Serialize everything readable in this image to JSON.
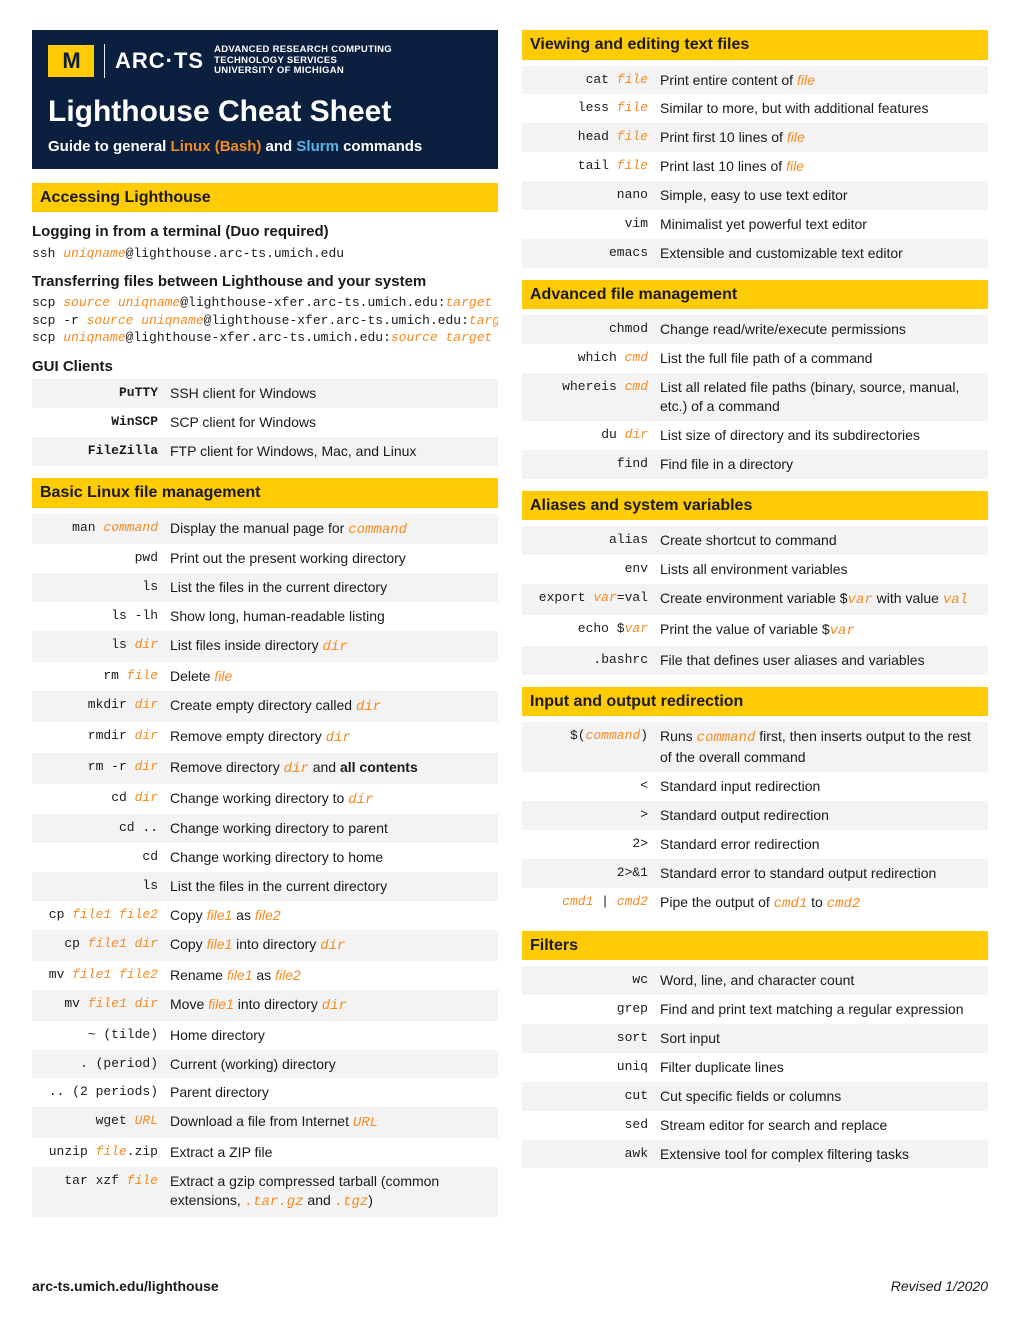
{
  "banner": {
    "logo_letter": "M",
    "arcts": "ARC·TS",
    "sub1": "ADVANCED RESEARCH COMPUTING",
    "sub2": "TECHNOLOGY SERVICES",
    "sub3": "UNIVERSITY OF MICHIGAN",
    "title": "Lighthouse Cheat Sheet",
    "subtitle_prefix": "Guide to general ",
    "subtitle_orange": "Linux (Bash)",
    "subtitle_mid": " and ",
    "subtitle_blue": "Slurm",
    "subtitle_suffix": " commands"
  },
  "colors": {
    "banner_bg": "#0b1f3f",
    "gold": "#ffcb05",
    "orange": "#f58a1f",
    "blue": "#5bb3e8",
    "row_alt": "#f3f3f3"
  },
  "left": {
    "sec1": {
      "title": "Accessing Lighthouse",
      "login_hdr": "Logging in from a terminal (Duo required)",
      "login_cmd_pre": "ssh ",
      "login_cmd_var": "uniqname",
      "login_cmd_post": "@lighthouse.arc-ts.umich.edu",
      "xfer_hdr": "Transferring files between Lighthouse and your system",
      "xfer1": {
        "a": "scp ",
        "b": "source uniqname",
        "c": "@lighthouse-xfer.arc-ts.umich.edu:",
        "d": "target"
      },
      "xfer2": {
        "a": "scp -r ",
        "b": "source uniqname",
        "c": "@lighthouse-xfer.arc-ts.umich.edu:",
        "d": "target"
      },
      "xfer3": {
        "a": "scp ",
        "b": "uniqname",
        "c": "@lighthouse-xfer.arc-ts.umich.edu:",
        "d": "source target"
      },
      "gui_hdr": "GUI Clients",
      "gui_rows": [
        {
          "k": "PuTTY",
          "d": "SSH client for Windows"
        },
        {
          "k": "WinSCP",
          "d": "SCP client for Windows"
        },
        {
          "k": "FileZilla",
          "d": "FTP client for Windows, Mac, and Linux"
        }
      ]
    },
    "sec2": {
      "title": "Basic Linux file management",
      "rows": [
        {
          "k": "man <i>command</i>",
          "d": "Display the manual page for <i>command</i>"
        },
        {
          "k": "pwd",
          "d": "Print out the present working directory"
        },
        {
          "k": "ls",
          "d": "List the files in the current directory"
        },
        {
          "k": "ls -lh",
          "d": "Show long, human-readable listing"
        },
        {
          "k": "ls <i>dir</i>",
          "d": "List files inside directory <i>dir</i>"
        },
        {
          "k": "rm <i>file</i>",
          "d": "Delete <fi>file</fi>"
        },
        {
          "k": "mkdir <i>dir</i>",
          "d": "Create empty directory called <i>dir</i>"
        },
        {
          "k": "rmdir <i>dir</i>",
          "d": "Remove empty directory <i>dir</i>"
        },
        {
          "k": "rm -r <i>dir</i>",
          "d": "Remove directory <i>dir</i> and <b>all contents</b>"
        },
        {
          "k": "cd <i>dir</i>",
          "d": "Change working directory to <i>dir</i>"
        },
        {
          "k": "cd ..",
          "d": "Change working directory to parent"
        },
        {
          "k": "cd",
          "d": "Change working directory to home"
        },
        {
          "k": "ls",
          "d": "List the files in the current directory"
        },
        {
          "k": "cp <i>file1 file2</i>",
          "d": "Copy <fi>file1</fi> as <fi>file2</fi>"
        },
        {
          "k": "cp <i>file1 dir</i>",
          "d": "Copy <fi>file1</fi> into directory <i>dir</i>"
        },
        {
          "k": "mv <i>file1 file2</i>",
          "d": "Rename <fi>file1</fi> as <fi>file2</fi>"
        },
        {
          "k": "mv <i>file1 dir</i>",
          "d": "Move <fi>file1</fi> into directory <i>dir</i>"
        },
        {
          "k": "~ (tilde)",
          "d": "Home directory"
        },
        {
          "k": ". (period)",
          "d": "Current (working) directory"
        },
        {
          "k": ".. (2 periods)",
          "d": "Parent directory"
        },
        {
          "k": "wget <i>URL</i>",
          "d": "Download a file from Internet <i>URL</i>"
        },
        {
          "k": "unzip <i>file</i>.zip",
          "d": "Extract a ZIP file"
        },
        {
          "k": "tar xzf <i>file</i>",
          "d": "Extract a gzip compressed tarball (common extensions, <m>.tar.gz</m> and <m>.tgz</m>)"
        }
      ]
    }
  },
  "right": {
    "sec3": {
      "title": "Viewing and editing text files",
      "rows": [
        {
          "k": "cat <i>file</i>",
          "d": "Print entire content of <fi>file</fi>"
        },
        {
          "k": "less <i>file</i>",
          "d": "Similar to more, but with additional features"
        },
        {
          "k": "head <i>file</i>",
          "d": "Print first 10 lines of <fi>file</fi>"
        },
        {
          "k": "tail <i>file</i>",
          "d": "Print last 10 lines of <fi>file</fi>"
        },
        {
          "k": "nano",
          "d": "Simple, easy to use text editor"
        },
        {
          "k": "vim",
          "d": "Minimalist yet powerful text editor"
        },
        {
          "k": "emacs",
          "d": "Extensible and customizable text editor"
        }
      ]
    },
    "sec4": {
      "title": "Advanced file management",
      "rows": [
        {
          "k": "chmod",
          "d": "Change read/write/execute permissions"
        },
        {
          "k": "which <i>cmd</i>",
          "d": "List the full file path of a command"
        },
        {
          "k": "whereis <i>cmd</i>",
          "d": "List all related file paths (binary, source, manual, etc.) of a command"
        },
        {
          "k": "du <i>dir</i>",
          "d": "List size of directory and its subdirectories"
        },
        {
          "k": "find",
          "d": "Find file in a directory"
        }
      ]
    },
    "sec5": {
      "title": "Aliases and system variables",
      "rows": [
        {
          "k": "alias",
          "d": "Create shortcut to command"
        },
        {
          "k": "env",
          "d": "Lists all environment variables"
        },
        {
          "k": "export <i>var</i>=val",
          "d": "Create environment variable $<i>var</i> with value <i>val</i>"
        },
        {
          "k": "echo $<i>var</i>",
          "d": "Print the value of variable $<i>var</i>"
        },
        {
          "k": ".bashrc",
          "d": "File that defines user aliases and variables"
        }
      ]
    },
    "sec6": {
      "title": "Input and output redirection",
      "rows": [
        {
          "k": "$(<i>command</i>)",
          "d": "Runs <i>command</i> first, then inserts output to the rest of the overall command"
        },
        {
          "k": "&lt;",
          "d": "Standard input redirection"
        },
        {
          "k": "&gt;",
          "d": "Standard output redirection"
        },
        {
          "k": "2&gt;",
          "d": "Standard error redirection"
        },
        {
          "k": "2&gt;&amp;1",
          "d": "Standard error to standard output redirection"
        },
        {
          "k": "<i>cmd1</i> | <i>cmd2</i>",
          "d": "Pipe the output of <i>cmd1</i> to <i>cmd2</i>"
        }
      ]
    },
    "sec7": {
      "title": "Filters",
      "rows": [
        {
          "k": "wc",
          "d": "Word, line, and character count"
        },
        {
          "k": "grep",
          "d": "Find and print text matching a regular expression"
        },
        {
          "k": "sort",
          "d": "Sort input"
        },
        {
          "k": "uniq",
          "d": "Filter duplicate lines"
        },
        {
          "k": "cut",
          "d": "Cut specific fields or columns"
        },
        {
          "k": "sed",
          "d": "Stream editor for search and replace"
        },
        {
          "k": "awk",
          "d": "Extensive tool for complex filtering tasks"
        }
      ]
    }
  },
  "footer": {
    "left": "arc-ts.umich.edu/lighthouse",
    "right": "Revised 1/2020"
  }
}
